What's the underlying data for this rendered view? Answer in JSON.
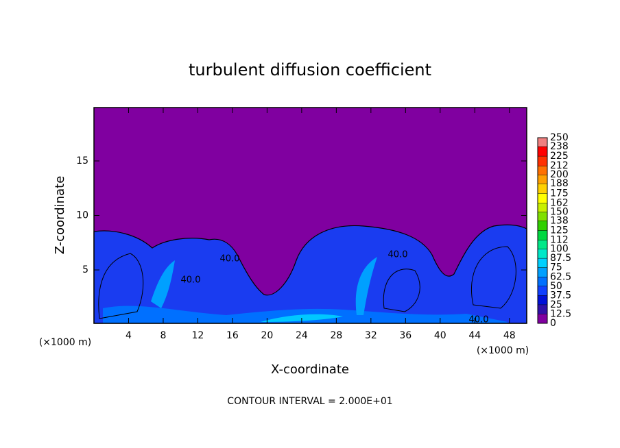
{
  "chart_data": {
    "type": "contour",
    "title": "turbulent diffusion coefficient",
    "xlabel": "X-coordinate",
    "ylabel": "Z-coordinate",
    "xlim": [
      0,
      50
    ],
    "ylim": [
      0.1,
      19.9
    ],
    "xticks": [
      4,
      8,
      12,
      16,
      20,
      24,
      28,
      32,
      36,
      40,
      44,
      48
    ],
    "yticks": [
      5,
      10,
      15
    ],
    "x_unit": "(×1000 m)",
    "y_unit": "(×1000 m)",
    "colorbar": {
      "ticks": [
        0,
        12.5,
        25,
        37.5,
        50,
        62.5,
        75,
        87.5,
        100,
        112,
        125,
        138,
        150,
        162,
        175,
        188,
        200,
        212,
        225,
        238,
        250
      ],
      "colors": [
        "#8000a0",
        "#3010a8",
        "#0010d8",
        "#1040ff",
        "#0070ff",
        "#00a0ff",
        "#00d0ff",
        "#00e8c8",
        "#00e888",
        "#00d840",
        "#30d000",
        "#80e000",
        "#c8f000",
        "#ffff00",
        "#ffd000",
        "#ffa000",
        "#ff7000",
        "#ff3000",
        "#ff0000",
        "#f08080"
      ]
    },
    "annotations": [
      "40.0",
      "40.0",
      "40.0",
      "40.0"
    ],
    "footer": "CONTOUR INTERVAL = 2.000E+01"
  }
}
